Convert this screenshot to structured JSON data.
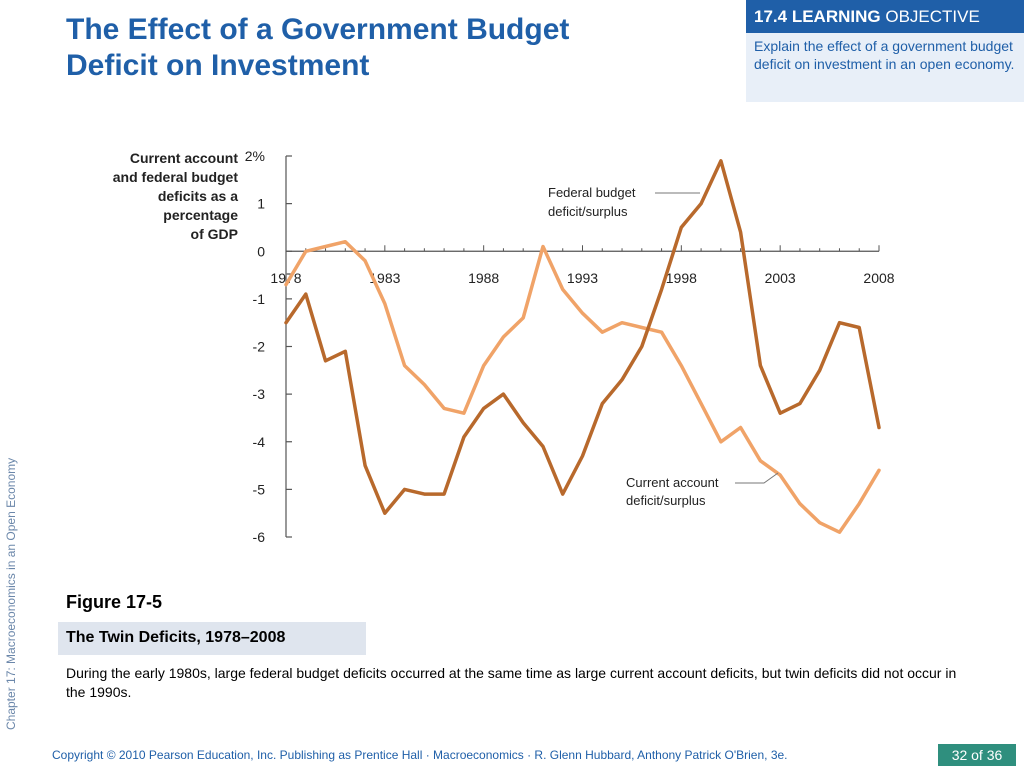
{
  "slide": {
    "title_line1": "The Effect of a Government Budget",
    "title_line2": "Deficit on Investment",
    "objective_number": "17.4",
    "objective_bold": "LEARNING",
    "objective_rest": "OBJECTIVE",
    "objective_text": "Explain the effect of a government budget deficit on investment in an open economy.",
    "side_label": "Chapter 17:  Macroeconomics in an Open Economy",
    "figure_label": "Figure 17-5",
    "figure_title": "The Twin Deficits, 1978–2008",
    "caption": "During the early 1980s, large federal budget deficits occurred at the same time as large current account deficits, but twin deficits did not occur in the 1990s.",
    "footer": "Copyright © 2010 Pearson Education, Inc. Publishing as Prentice Hall · Macroeconomics · R. Glenn Hubbard, Anthony Patrick O'Brien, 3e.",
    "page": "32 of 36"
  },
  "chart_data": {
    "type": "line",
    "ylabel_lines": [
      "Current account",
      "and federal budget",
      "deficits as a",
      "percentage",
      "of GDP"
    ],
    "ylim": [
      -6,
      2
    ],
    "y_ticks": [
      2,
      1,
      0,
      -1,
      -2,
      -3,
      -4,
      -5,
      -6
    ],
    "y_tick_labels": [
      "2%",
      "1",
      "0",
      "-1",
      "-2",
      "-3",
      "-4",
      "-5",
      "-6"
    ],
    "x_ticks": [
      1978,
      1983,
      1988,
      1993,
      1998,
      2003,
      2008
    ],
    "x_tick_labels": [
      "1978",
      "1983",
      "1988",
      "1993",
      "1998",
      "2003",
      "2008"
    ],
    "xlim": [
      1978,
      2008
    ],
    "series": [
      {
        "name": "Federal budget deficit/surplus",
        "label_lines": [
          "Federal budget",
          "deficit/surplus"
        ],
        "color": "#b8692c",
        "x": [
          1978,
          1979,
          1980,
          1981,
          1982,
          1983,
          1984,
          1985,
          1986,
          1987,
          1988,
          1989,
          1990,
          1991,
          1992,
          1993,
          1994,
          1995,
          1996,
          1997,
          1998,
          1999,
          2000,
          2001,
          2002,
          2003,
          2004,
          2005,
          2006,
          2007,
          2008
        ],
        "values": [
          -1.5,
          -0.9,
          -2.3,
          -2.1,
          -4.5,
          -5.5,
          -5.0,
          -5.1,
          -5.1,
          -3.9,
          -3.3,
          -3.0,
          -3.6,
          -4.1,
          -5.1,
          -4.3,
          -3.2,
          -2.7,
          -2.0,
          -0.8,
          0.5,
          1.0,
          1.9,
          0.4,
          -2.4,
          -3.4,
          -3.2,
          -2.5,
          -1.5,
          -1.6,
          -3.7
        ]
      },
      {
        "name": "Current account deficit/surplus",
        "label_lines": [
          "Current account",
          "deficit/surplus"
        ],
        "color": "#f0a368",
        "x": [
          1978,
          1979,
          1980,
          1981,
          1982,
          1983,
          1984,
          1985,
          1986,
          1987,
          1988,
          1989,
          1990,
          1991,
          1992,
          1993,
          1994,
          1995,
          1996,
          1997,
          1998,
          1999,
          2000,
          2001,
          2002,
          2003,
          2004,
          2005,
          2006,
          2007,
          2008
        ],
        "values": [
          -0.7,
          0.0,
          0.1,
          0.2,
          -0.2,
          -1.1,
          -2.4,
          -2.8,
          -3.3,
          -3.4,
          -2.4,
          -1.8,
          -1.4,
          0.1,
          -0.8,
          -1.3,
          -1.7,
          -1.5,
          -1.6,
          -1.7,
          -2.4,
          -3.2,
          -4.0,
          -3.7,
          -4.4,
          -4.7,
          -5.3,
          -5.7,
          -5.9,
          -5.3,
          -4.6
        ]
      }
    ]
  }
}
